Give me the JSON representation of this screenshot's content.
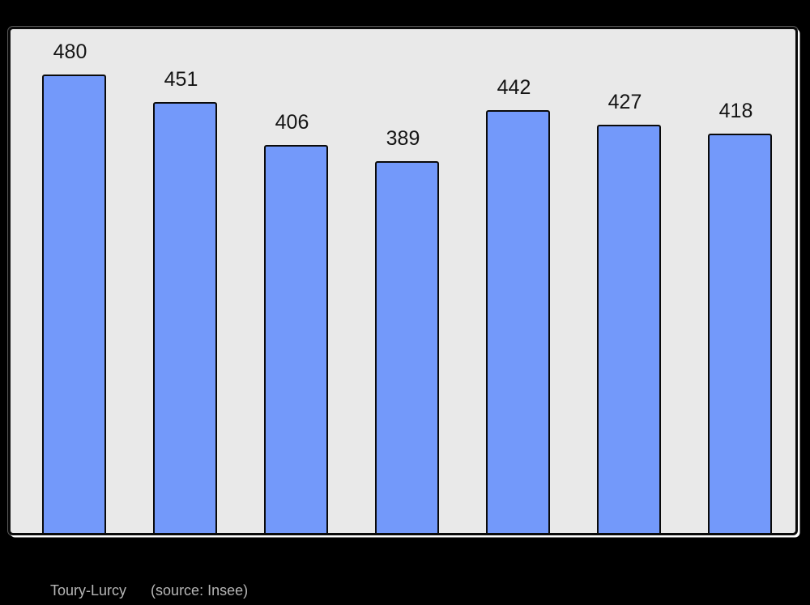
{
  "colors": {
    "page_bg": "#000000",
    "plot_bg": "#e9e9e9",
    "frame_border": "#0a0a0a",
    "frame_highlight": "#ffffff",
    "bar_fill": "#7399fa",
    "bar_border": "#0a0a0a",
    "label_color": "#141414",
    "caption_color": "#b6b6b6"
  },
  "chart_data": {
    "type": "bar",
    "values": [
      480,
      451,
      406,
      389,
      442,
      427,
      418
    ],
    "data_labels": [
      "480",
      "451",
      "406",
      "389",
      "442",
      "427",
      "418"
    ],
    "title": "",
    "xlabel": "",
    "ylabel": "",
    "ylim": [
      0,
      529
    ],
    "grid": false,
    "legend": false,
    "caption": "Toury-Lurcy",
    "source_note": "(source: Insee)"
  }
}
